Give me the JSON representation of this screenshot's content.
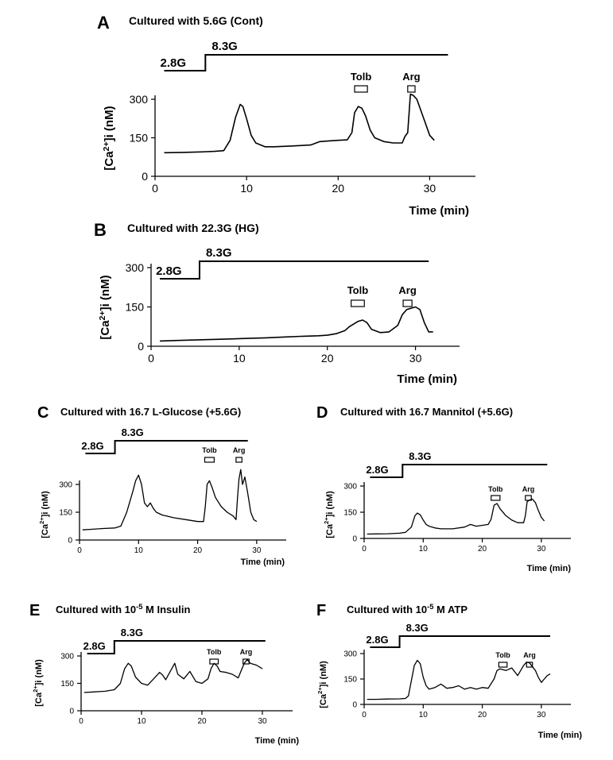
{
  "figure": {
    "superscript_minus5": "-5",
    "ca_label_base": "[Ca",
    "ca_label_sup": "2+",
    "ca_label_rest": "]i (nM)"
  },
  "chart_data": [
    {
      "id": "A",
      "type": "line",
      "letter": "A",
      "title": "Cultured with 5.6G (Cont)",
      "xlabel": "Time (min)",
      "ylabel": "[Ca2+]i (nM)",
      "xlim": [
        0,
        35
      ],
      "ylim": [
        0,
        320
      ],
      "xticks": [
        0,
        10,
        20,
        30
      ],
      "yticks": [
        0,
        150,
        300
      ],
      "glucose_low_label": "2.8G",
      "glucose_high_label": "8.3G",
      "glucose_step": {
        "start": 1,
        "switch": 5.5,
        "end": 32
      },
      "stimuli": [
        {
          "label": "Tolb",
          "start": 21.8,
          "end": 23.2
        },
        {
          "label": "Arg",
          "start": 27.6,
          "end": 28.4
        }
      ],
      "series": [
        {
          "name": "[Ca2+]i",
          "x": [
            1,
            3,
            5,
            6.5,
            7.5,
            8.2,
            8.8,
            9.3,
            9.6,
            10,
            10.5,
            11,
            12,
            13,
            15,
            17,
            18,
            19,
            20,
            21,
            21.5,
            21.8,
            22.2,
            22.6,
            23,
            23.5,
            24,
            25,
            26,
            27,
            27.3,
            27.6,
            27.9,
            28.2,
            28.6,
            29,
            29.5,
            30,
            30.5
          ],
          "values": [
            92,
            93,
            95,
            97,
            100,
            140,
            230,
            280,
            272,
            225,
            160,
            130,
            115,
            115,
            118,
            122,
            135,
            138,
            140,
            142,
            170,
            248,
            272,
            265,
            235,
            180,
            150,
            135,
            130,
            130,
            155,
            170,
            320,
            315,
            300,
            260,
            210,
            160,
            140
          ]
        }
      ]
    },
    {
      "id": "B",
      "type": "line",
      "letter": "B",
      "title": "Cultured with 22.3G (HG)",
      "xlabel": "Time (min)",
      "ylabel": "[Ca2+]i (nM)",
      "xlim": [
        0,
        35
      ],
      "ylim": [
        0,
        330
      ],
      "xticks": [
        0,
        10,
        20,
        30
      ],
      "yticks": [
        0,
        150,
        300
      ],
      "glucose_low_label": "2.8G",
      "glucose_high_label": "8.3G",
      "glucose_step": {
        "start": 1,
        "switch": 5.5,
        "end": 31.5
      },
      "stimuli": [
        {
          "label": "Tolb",
          "start": 22.7,
          "end": 24.2
        },
        {
          "label": "Arg",
          "start": 28.6,
          "end": 29.6
        }
      ],
      "series": [
        {
          "name": "[Ca2+]i",
          "x": [
            1,
            3,
            5,
            7,
            9,
            11,
            13,
            15,
            17,
            19,
            20,
            21,
            22,
            22.5,
            23,
            23.5,
            24,
            24.5,
            25,
            26,
            27,
            28,
            28.5,
            29,
            29.5,
            30,
            30.5,
            31,
            31.5,
            32
          ],
          "values": [
            20,
            22,
            24,
            26,
            28,
            30,
            32,
            35,
            38,
            40,
            42,
            48,
            60,
            75,
            85,
            95,
            100,
            90,
            65,
            52,
            55,
            80,
            120,
            140,
            145,
            150,
            140,
            90,
            55,
            55
          ]
        }
      ]
    },
    {
      "id": "C",
      "type": "line",
      "letter": "C",
      "title": "Cultured with 16.7 L-Glucose (+5.6G)",
      "xlabel": "Time (min)",
      "ylabel": "[Ca2+]i (nM)",
      "xlim": [
        0,
        35
      ],
      "ylim": [
        0,
        320
      ],
      "xticks": [
        0,
        10,
        20,
        30
      ],
      "yticks": [
        0,
        150,
        300
      ],
      "glucose_low_label": "2.8G",
      "glucose_high_label": "8.3G",
      "glucose_step": {
        "start": 1,
        "switch": 6,
        "end": 28.5
      },
      "stimuli": [
        {
          "label": "Tolb",
          "start": 21.2,
          "end": 22.8
        },
        {
          "label": "Arg",
          "start": 26.5,
          "end": 27.5
        }
      ],
      "series": [
        {
          "name": "[Ca2+]i",
          "x": [
            0.5,
            2,
            4,
            6,
            7,
            8,
            9,
            9.5,
            10,
            10.5,
            11,
            11.5,
            12,
            12.5,
            13,
            14,
            16,
            18,
            20,
            21,
            21.3,
            21.6,
            22,
            22.5,
            23,
            24,
            25,
            26,
            26.5,
            26.8,
            27,
            27.3,
            27.6,
            28,
            28.5,
            29,
            29.5,
            30
          ],
          "values": [
            55,
            58,
            62,
            65,
            75,
            150,
            260,
            320,
            350,
            300,
            200,
            180,
            200,
            170,
            150,
            135,
            120,
            110,
            100,
            100,
            180,
            300,
            320,
            280,
            230,
            180,
            150,
            130,
            110,
            250,
            330,
            380,
            300,
            340,
            250,
            150,
            110,
            100
          ]
        }
      ]
    },
    {
      "id": "D",
      "type": "line",
      "letter": "D",
      "title": "Cultured with 16.7 Mannitol (+5.6G)",
      "xlabel": "Time (min)",
      "ylabel": "[Ca2+]i (nM)",
      "xlim": [
        0,
        35
      ],
      "ylim": [
        0,
        320
      ],
      "xticks": [
        0,
        10,
        20,
        30
      ],
      "yticks": [
        0,
        150,
        300
      ],
      "glucose_low_label": "2.8G",
      "glucose_high_label": "8.3G",
      "glucose_step": {
        "start": 1,
        "switch": 6.5,
        "end": 31
      },
      "stimuli": [
        {
          "label": "Tolb",
          "start": 21.5,
          "end": 23
        },
        {
          "label": "Arg",
          "start": 27.3,
          "end": 28.3
        }
      ],
      "series": [
        {
          "name": "[Ca2+]i",
          "x": [
            0.5,
            2,
            4,
            6,
            7,
            8,
            8.6,
            9,
            9.5,
            10,
            10.5,
            11,
            12,
            13,
            15,
            17,
            18,
            19,
            20,
            21,
            21.5,
            22,
            22.5,
            23,
            24,
            25,
            26,
            27,
            27.3,
            27.6,
            28,
            28.5,
            29,
            29.5,
            30,
            30.5
          ],
          "values": [
            25,
            26,
            27,
            30,
            35,
            65,
            130,
            145,
            135,
            105,
            80,
            70,
            60,
            55,
            55,
            65,
            80,
            70,
            75,
            80,
            110,
            190,
            200,
            170,
            130,
            105,
            90,
            90,
            130,
            210,
            220,
            225,
            205,
            160,
            120,
            100
          ]
        }
      ]
    },
    {
      "id": "E",
      "type": "line",
      "letter": "E",
      "title_pre": "Cultured with 10",
      "title_sup": "-5",
      "title_post": " M Insulin",
      "xlabel": "Time (min)",
      "ylabel": "[Ca2+]i (nM)",
      "xlim": [
        0,
        35
      ],
      "ylim": [
        0,
        320
      ],
      "xticks": [
        0,
        10,
        20,
        30
      ],
      "yticks": [
        0,
        150,
        300
      ],
      "glucose_low_label": "2.8G",
      "glucose_high_label": "8.3G",
      "glucose_step": {
        "start": 1,
        "switch": 5.5,
        "end": 30.5
      },
      "stimuli": [
        {
          "label": "Tolb",
          "start": 21.3,
          "end": 22.7
        },
        {
          "label": "Arg",
          "start": 26.8,
          "end": 27.8
        }
      ],
      "series": [
        {
          "name": "[Ca2+]i",
          "x": [
            0.5,
            2,
            4,
            5.5,
            6.5,
            7.2,
            7.8,
            8.3,
            9,
            10,
            11,
            12,
            13,
            13.5,
            14,
            15,
            15.5,
            16,
            17,
            18,
            19,
            20,
            21,
            21.5,
            22,
            22.5,
            23,
            24,
            25,
            26,
            26.5,
            27,
            27.5,
            28,
            29,
            30
          ],
          "values": [
            100,
            103,
            107,
            115,
            150,
            230,
            260,
            245,
            185,
            150,
            140,
            175,
            210,
            195,
            170,
            230,
            260,
            200,
            175,
            215,
            160,
            150,
            175,
            230,
            260,
            245,
            215,
            210,
            200,
            180,
            220,
            260,
            280,
            260,
            250,
            230
          ]
        }
      ]
    },
    {
      "id": "F",
      "type": "line",
      "letter": "F",
      "title_pre": "Cultured with 10",
      "title_sup": "-5",
      "title_post": " M ATP",
      "xlabel": "Time (min)",
      "ylabel": "[Ca2+]i (nM)",
      "xlim": [
        0,
        35
      ],
      "ylim": [
        0,
        320
      ],
      "xticks": [
        0,
        10,
        20,
        30
      ],
      "yticks": [
        0,
        150,
        300
      ],
      "glucose_low_label": "2.8G",
      "glucose_high_label": "8.3G",
      "glucose_step": {
        "start": 1,
        "switch": 6,
        "end": 31.5
      },
      "stimuli": [
        {
          "label": "Tolb",
          "start": 22.8,
          "end": 24.2
        },
        {
          "label": "Arg",
          "start": 27.5,
          "end": 28.5
        }
      ],
      "series": [
        {
          "name": "[Ca2+]i",
          "x": [
            0.5,
            2,
            4,
            6,
            7,
            7.5,
            8,
            8.5,
            9,
            9.5,
            10,
            10.5,
            11,
            12,
            13,
            14,
            15,
            16,
            17,
            18,
            19,
            20,
            21,
            22,
            22.5,
            23,
            24,
            25,
            26,
            27,
            27.5,
            28,
            29,
            29.5,
            30,
            30.5,
            31,
            31.5
          ],
          "values": [
            30,
            30,
            32,
            33,
            35,
            50,
            140,
            230,
            260,
            240,
            160,
            110,
            90,
            100,
            120,
            95,
            100,
            110,
            90,
            100,
            90,
            100,
            95,
            150,
            200,
            210,
            200,
            215,
            170,
            230,
            250,
            245,
            200,
            160,
            130,
            150,
            170,
            180
          ]
        }
      ]
    }
  ]
}
